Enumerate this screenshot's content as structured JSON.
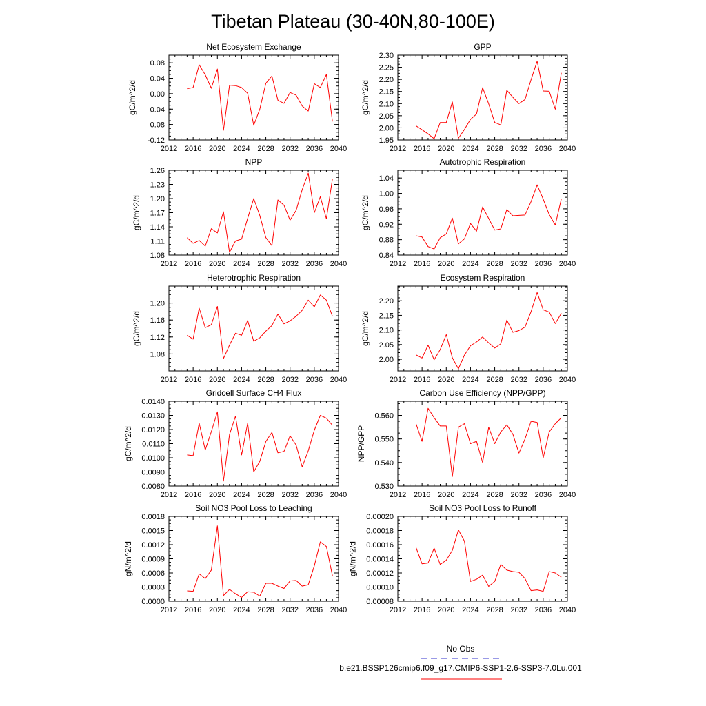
{
  "title": "Tibetan Plateau (30-40N,80-100E)",
  "legend": {
    "entries": [
      {
        "label": "No Obs",
        "color": "#3333cc",
        "style": "dashed"
      },
      {
        "label": "b.e21.BSSP126cmip6.f09_g17.CMIP6-SSP1-2.6-SSP3-7.0Lu.001",
        "color": "#ff0000",
        "style": "solid"
      }
    ]
  },
  "chart_data": [
    {
      "type": "line",
      "title": "Net Ecosystem Exchange",
      "ylabel": "gC/m^2/d",
      "xlim": [
        2012,
        2040
      ],
      "ylim": [
        -0.12,
        0.1
      ],
      "xticks": [
        "2012",
        "2016",
        "2020",
        "2024",
        "2028",
        "2032",
        "2036",
        "2040"
      ],
      "yticks": [
        "-0.12",
        "-0.08",
        "-0.04",
        "0.00",
        "0.04",
        "0.08"
      ],
      "series": [
        {
          "color": "#ff0000",
          "x": [
            2015,
            2016,
            2017,
            2018,
            2019,
            2020,
            2021,
            2022,
            2023,
            2024,
            2025,
            2026,
            2027,
            2028,
            2029,
            2030,
            2031,
            2032,
            2033,
            2034,
            2035,
            2036,
            2037,
            2038,
            2039
          ],
          "values": [
            0.013,
            0.016,
            0.075,
            0.049,
            0.014,
            0.064,
            -0.095,
            0.022,
            0.021,
            0.016,
            0.001,
            -0.082,
            -0.04,
            0.027,
            0.046,
            -0.017,
            -0.025,
            0.003,
            -0.004,
            -0.032,
            -0.045,
            0.026,
            0.016,
            0.05,
            -0.072
          ]
        }
      ]
    },
    {
      "type": "line",
      "title": "GPP",
      "ylabel": "gC/m^2/d",
      "xlim": [
        2012,
        2040
      ],
      "ylim": [
        1.95,
        2.3
      ],
      "xticks": [
        "2012",
        "2016",
        "2020",
        "2024",
        "2028",
        "2032",
        "2036",
        "2040"
      ],
      "yticks": [
        "1.95",
        "2.00",
        "2.05",
        "2.10",
        "2.15",
        "2.20",
        "2.25",
        "2.30"
      ],
      "series": [
        {
          "color": "#ff0000",
          "x": [
            2015,
            2016,
            2017,
            2018,
            2019,
            2020,
            2021,
            2022,
            2023,
            2024,
            2025,
            2026,
            2027,
            2028,
            2029,
            2030,
            2031,
            2032,
            2033,
            2034,
            2035,
            2036,
            2037,
            2038,
            2039
          ],
          "values": [
            2.008,
            1.992,
            1.975,
            1.955,
            2.022,
            2.022,
            2.107,
            1.957,
            1.993,
            2.035,
            2.057,
            2.166,
            2.099,
            2.022,
            2.012,
            2.155,
            2.126,
            2.1,
            2.117,
            2.199,
            2.275,
            2.152,
            2.151,
            2.077,
            2.227
          ]
        }
      ]
    },
    {
      "type": "line",
      "title": "NPP",
      "ylabel": "gC/m^2/d",
      "xlim": [
        2012,
        2040
      ],
      "ylim": [
        1.08,
        1.26
      ],
      "xticks": [
        "2012",
        "2016",
        "2020",
        "2024",
        "2028",
        "2032",
        "2036",
        "2040"
      ],
      "yticks": [
        "1.08",
        "1.11",
        "1.14",
        "1.17",
        "1.20",
        "1.23",
        "1.26"
      ],
      "series": [
        {
          "color": "#ff0000",
          "x": [
            2015,
            2016,
            2017,
            2018,
            2019,
            2020,
            2021,
            2022,
            2023,
            2024,
            2025,
            2026,
            2027,
            2028,
            2029,
            2030,
            2031,
            2032,
            2033,
            2034,
            2035,
            2036,
            2037,
            2038,
            2039
          ],
          "values": [
            1.117,
            1.105,
            1.111,
            1.099,
            1.136,
            1.127,
            1.172,
            1.086,
            1.11,
            1.114,
            1.158,
            1.2,
            1.164,
            1.117,
            1.1,
            1.197,
            1.186,
            1.154,
            1.175,
            1.219,
            1.254,
            1.17,
            1.204,
            1.157,
            1.242
          ]
        }
      ]
    },
    {
      "type": "line",
      "title": "Autotrophic Respiration",
      "ylabel": "gC/m^2/d",
      "xlim": [
        2012,
        2040
      ],
      "ylim": [
        0.84,
        1.06
      ],
      "xticks": [
        "2012",
        "2016",
        "2020",
        "2024",
        "2028",
        "2032",
        "2036",
        "2040"
      ],
      "yticks": [
        "0.84",
        "0.88",
        "0.92",
        "0.96",
        "1.00",
        "1.04"
      ],
      "series": [
        {
          "color": "#ff0000",
          "x": [
            2015,
            2016,
            2017,
            2018,
            2019,
            2020,
            2021,
            2022,
            2023,
            2024,
            2025,
            2026,
            2027,
            2028,
            2029,
            2030,
            2031,
            2032,
            2033,
            2034,
            2035,
            2036,
            2037,
            2038,
            2039
          ],
          "values": [
            0.89,
            0.887,
            0.862,
            0.856,
            0.885,
            0.895,
            0.936,
            0.869,
            0.882,
            0.922,
            0.902,
            0.965,
            0.935,
            0.905,
            0.908,
            0.958,
            0.942,
            0.943,
            0.944,
            0.979,
            1.022,
            0.985,
            0.945,
            0.918,
            0.986
          ]
        }
      ]
    },
    {
      "type": "line",
      "title": "Heterotrophic Respiration",
      "ylabel": "gC/m^2/d",
      "xlim": [
        2012,
        2040
      ],
      "ylim": [
        1.04,
        1.24
      ],
      "xticks": [
        "2012",
        "2016",
        "2020",
        "2024",
        "2028",
        "2032",
        "2036",
        "2040"
      ],
      "yticks": [
        "1.08",
        "1.12",
        "1.16",
        "1.20"
      ],
      "series": [
        {
          "color": "#ff0000",
          "x": [
            2015,
            2016,
            2017,
            2018,
            2019,
            2020,
            2021,
            2022,
            2023,
            2024,
            2025,
            2026,
            2027,
            2028,
            2029,
            2030,
            2031,
            2032,
            2033,
            2034,
            2035,
            2036,
            2037,
            2038,
            2039
          ],
          "values": [
            1.124,
            1.115,
            1.188,
            1.142,
            1.149,
            1.192,
            1.069,
            1.101,
            1.129,
            1.124,
            1.159,
            1.11,
            1.118,
            1.134,
            1.147,
            1.174,
            1.151,
            1.158,
            1.169,
            1.183,
            1.207,
            1.191,
            1.219,
            1.207,
            1.169
          ]
        }
      ]
    },
    {
      "type": "line",
      "title": "Ecosystem Respiration",
      "ylabel": "gC/m^2/d",
      "xlim": [
        2012,
        2040
      ],
      "ylim": [
        1.96,
        2.25
      ],
      "xticks": [
        "2012",
        "2016",
        "2020",
        "2024",
        "2028",
        "2032",
        "2036",
        "2040"
      ],
      "yticks": [
        "2.00",
        "2.05",
        "2.10",
        "2.15",
        "2.20"
      ],
      "series": [
        {
          "color": "#ff0000",
          "x": [
            2015,
            2016,
            2017,
            2018,
            2019,
            2020,
            2021,
            2022,
            2023,
            2024,
            2025,
            2026,
            2027,
            2028,
            2029,
            2030,
            2031,
            2032,
            2033,
            2034,
            2035,
            2036,
            2037,
            2038,
            2039
          ],
          "values": [
            2.015,
            2.004,
            2.048,
            1.998,
            2.033,
            2.084,
            2.005,
            1.967,
            2.014,
            2.046,
            2.059,
            2.076,
            2.056,
            2.038,
            2.053,
            2.134,
            2.092,
            2.098,
            2.11,
            2.163,
            2.228,
            2.169,
            2.161,
            2.122,
            2.157
          ]
        }
      ]
    },
    {
      "type": "line",
      "title": "Gridcell Surface CH4 Flux",
      "ylabel": "gC/m^2/d",
      "xlim": [
        2012,
        2040
      ],
      "ylim": [
        0.008,
        0.014
      ],
      "xticks": [
        "2012",
        "2016",
        "2020",
        "2024",
        "2028",
        "2032",
        "2036",
        "2040"
      ],
      "yticks": [
        "0.0080",
        "0.0090",
        "0.0100",
        "0.0110",
        "0.0120",
        "0.0130",
        "0.0140"
      ],
      "series": [
        {
          "color": "#ff0000",
          "x": [
            2015,
            2016,
            2017,
            2018,
            2019,
            2020,
            2021,
            2022,
            2023,
            2024,
            2025,
            2026,
            2027,
            2028,
            2029,
            2030,
            2031,
            2032,
            2033,
            2034,
            2035,
            2036,
            2037,
            2038,
            2039
          ],
          "values": [
            0.0102,
            0.01015,
            0.01245,
            0.01055,
            0.01185,
            0.01325,
            0.00835,
            0.01165,
            0.01295,
            0.0102,
            0.01245,
            0.009,
            0.00975,
            0.01115,
            0.0118,
            0.01035,
            0.01045,
            0.01155,
            0.0109,
            0.00935,
            0.0105,
            0.01195,
            0.013,
            0.0128,
            0.0123
          ]
        }
      ]
    },
    {
      "type": "line",
      "title": "Carbon Use Efficiency (NPP/GPP)",
      "ylabel": "NPP/GPP",
      "xlim": [
        2012,
        2040
      ],
      "ylim": [
        0.53,
        0.566
      ],
      "xticks": [
        "2012",
        "2016",
        "2020",
        "2024",
        "2028",
        "2032",
        "2036",
        "2040"
      ],
      "yticks": [
        "0.530",
        "0.540",
        "0.550",
        "0.560"
      ],
      "series": [
        {
          "color": "#ff0000",
          "x": [
            2015,
            2016,
            2017,
            2018,
            2019,
            2020,
            2021,
            2022,
            2023,
            2024,
            2025,
            2026,
            2027,
            2028,
            2029,
            2030,
            2031,
            2032,
            2033,
            2034,
            2035,
            2036,
            2037,
            2038,
            2039
          ],
          "values": [
            0.5565,
            0.549,
            0.563,
            0.559,
            0.5555,
            0.5555,
            0.534,
            0.555,
            0.5565,
            0.548,
            0.549,
            0.54,
            0.555,
            0.548,
            0.553,
            0.556,
            0.552,
            0.544,
            0.55,
            0.5575,
            0.557,
            0.542,
            0.553,
            0.5565,
            0.559
          ]
        }
      ]
    },
    {
      "type": "line",
      "title": "Soil NO3 Pool Loss to Leaching",
      "ylabel": "gN/m^2/d",
      "xlim": [
        2012,
        2040
      ],
      "ylim": [
        0.0,
        0.0018
      ],
      "xticks": [
        "2012",
        "2016",
        "2020",
        "2024",
        "2028",
        "2032",
        "2036",
        "2040"
      ],
      "yticks": [
        "0.0000",
        "0.0003",
        "0.0006",
        "0.0009",
        "0.0012",
        "0.0015",
        "0.0018"
      ],
      "series": [
        {
          "color": "#ff0000",
          "x": [
            2015,
            2016,
            2017,
            2018,
            2019,
            2020,
            2021,
            2022,
            2023,
            2024,
            2025,
            2026,
            2027,
            2028,
            2029,
            2030,
            2031,
            2032,
            2033,
            2034,
            2035,
            2036,
            2037,
            2038,
            2039
          ],
          "values": [
            0.00022,
            0.00021,
            0.00058,
            0.00048,
            0.00066,
            0.0016,
            0.00012,
            0.00025,
            0.00016,
            8e-05,
            0.0002,
            0.00019,
            0.00011,
            0.00038,
            0.00038,
            0.00032,
            0.00027,
            0.00043,
            0.00044,
            0.00032,
            0.00035,
            0.00075,
            0.00126,
            0.00116,
            0.00054
          ]
        }
      ]
    },
    {
      "type": "line",
      "title": "Soil NO3 Pool Loss to Runoff",
      "ylabel": "gN/m^2/d",
      "xlim": [
        2012,
        2040
      ],
      "ylim": [
        8e-05,
        0.0002
      ],
      "xticks": [
        "2012",
        "2016",
        "2020",
        "2024",
        "2028",
        "2032",
        "2036",
        "2040"
      ],
      "yticks": [
        "0.00008",
        "0.00010",
        "0.00012",
        "0.00014",
        "0.00016",
        "0.00018",
        "0.00020"
      ],
      "series": [
        {
          "color": "#ff0000",
          "x": [
            2015,
            2016,
            2017,
            2018,
            2019,
            2020,
            2021,
            2022,
            2023,
            2024,
            2025,
            2026,
            2027,
            2028,
            2029,
            2030,
            2031,
            2032,
            2033,
            2034,
            2035,
            2036,
            2037,
            2038,
            2039
          ],
          "values": [
            0.000156,
            0.000133,
            0.000134,
            0.000155,
            0.000132,
            0.000138,
            0.000152,
            0.000181,
            0.000165,
            0.000108,
            0.000111,
            0.000117,
            0.000101,
            0.000108,
            0.000132,
            0.000124,
            0.000122,
            0.000121,
            0.000112,
            9.5e-05,
            9.6e-05,
            9.4e-05,
            0.000122,
            0.00012,
            0.000114
          ]
        }
      ]
    }
  ]
}
